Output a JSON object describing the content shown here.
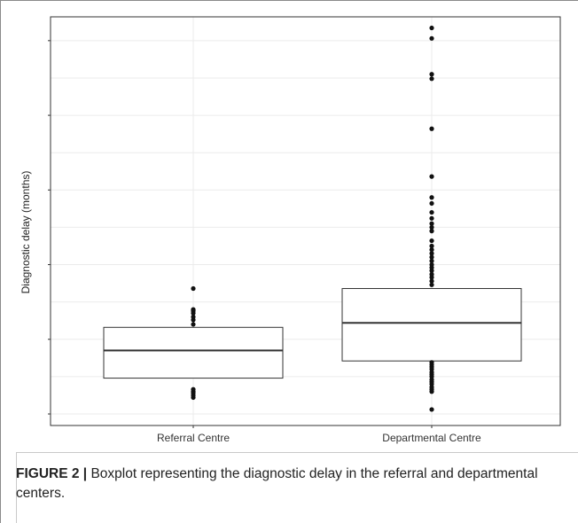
{
  "chart_data": {
    "type": "box",
    "title": "",
    "xlabel": "",
    "ylabel": "Diagnostic delay (months)",
    "categories": [
      "Referral Centre",
      "Departmental Centre"
    ],
    "y_tick_labels_visible": false,
    "ylim": [
      0,
      520
    ],
    "y_ticks": [
      0,
      100,
      200,
      300,
      400,
      500
    ],
    "grid": true,
    "boxes": [
      {
        "category": "Referral Centre",
        "whisker_low": 48,
        "q1": 48,
        "median": 85,
        "q3": 116,
        "whisker_high": 116,
        "outliers": [
          22,
          25,
          28,
          30,
          33,
          120,
          126,
          130,
          135,
          138,
          140,
          168
        ]
      },
      {
        "category": "Departmental Centre",
        "whisker_low": 71,
        "q1": 71,
        "median": 122,
        "q3": 168,
        "whisker_high": 168,
        "outliers": [
          6,
          30,
          33,
          36,
          40,
          43,
          46,
          50,
          53,
          56,
          60,
          63,
          66,
          69,
          173,
          178,
          183,
          187,
          192,
          196,
          200,
          205,
          210,
          215,
          220,
          225,
          232,
          245,
          250,
          255,
          262,
          270,
          282,
          290,
          318,
          382,
          449,
          455,
          503,
          517
        ]
      }
    ]
  },
  "caption": {
    "figure_label": "FIGURE 2 |",
    "text": " Boxplot representing the diagnostic delay in the referral and departmental centers."
  },
  "colors": {
    "grid": "#ebebeb",
    "box_stroke": "#333333",
    "point": "#111111",
    "axis": "#333333"
  }
}
